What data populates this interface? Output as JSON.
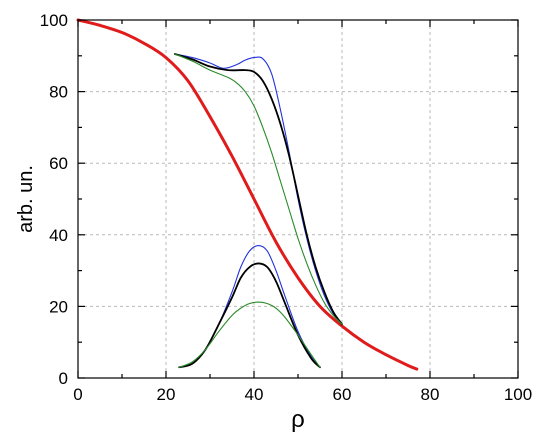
{
  "chart_data": {
    "type": "line",
    "title": "",
    "xlabel": "ρ",
    "ylabel": "arb. un.",
    "xlim": [
      0,
      100
    ],
    "ylim": [
      0,
      100
    ],
    "xticks": [
      0,
      20,
      40,
      60,
      80,
      100
    ],
    "yticks": [
      0,
      20,
      40,
      60,
      80,
      100
    ],
    "grid": true,
    "series": [
      {
        "color": "#e01b1b",
        "x": [
          0,
          5,
          10,
          15,
          20,
          25,
          30,
          35,
          40,
          45,
          50,
          55,
          60,
          65,
          70,
          75,
          77
        ],
        "y": [
          100,
          98.5,
          96.5,
          93.5,
          89.5,
          83,
          73,
          62,
          50,
          38,
          28,
          20,
          14.5,
          10,
          6.5,
          3.5,
          2.5
        ]
      },
      {
        "color": "#2233dd",
        "x": [
          22,
          26,
          30,
          33,
          36,
          38,
          40,
          42,
          44,
          46,
          48,
          50,
          52,
          54,
          56,
          58,
          60
        ],
        "y": [
          90.5,
          89.5,
          88,
          86.5,
          87.5,
          88.8,
          89.5,
          89.2,
          85,
          75,
          63,
          50,
          39,
          30,
          23,
          18,
          15
        ]
      },
      {
        "color": "#000000",
        "x": [
          22,
          26,
          30,
          34,
          38,
          40,
          42,
          44,
          46,
          48,
          50,
          52,
          54,
          56,
          58,
          60
        ],
        "y": [
          90.5,
          89,
          87,
          86,
          86,
          85.5,
          83,
          78,
          71,
          62,
          51,
          40,
          31,
          24,
          18.5,
          15
        ]
      },
      {
        "color": "#2a8a2a",
        "x": [
          22,
          26,
          30,
          34,
          36,
          38,
          40,
          42,
          44,
          46,
          48,
          50,
          52,
          54,
          56,
          58,
          60
        ],
        "y": [
          90.5,
          88.5,
          86,
          84,
          82.5,
          80,
          76,
          70,
          63,
          55,
          47,
          39,
          32,
          26,
          21,
          17.5,
          15
        ]
      },
      {
        "color": "#2233dd",
        "x": [
          23,
          26,
          29,
          32,
          35,
          37,
          39,
          41,
          43,
          45,
          47,
          50,
          53,
          55
        ],
        "y": [
          3,
          4,
          8,
          15,
          24,
          31,
          35.5,
          37,
          35.5,
          30,
          23,
          13,
          6,
          3
        ]
      },
      {
        "color": "#000000",
        "x": [
          23,
          26,
          29,
          32,
          35,
          37,
          39,
          41,
          43,
          45,
          47,
          50,
          53,
          55
        ],
        "y": [
          3,
          4,
          8,
          15,
          22.5,
          28,
          31,
          32,
          31,
          27,
          21,
          12,
          5.5,
          3
        ]
      },
      {
        "color": "#2a8a2a",
        "x": [
          23,
          26,
          29,
          32,
          35,
          37,
          39,
          41,
          43,
          45,
          47,
          50,
          53,
          55
        ],
        "y": [
          3,
          4.5,
          8,
          13,
          17.5,
          19.5,
          20.8,
          21.2,
          20.8,
          19.5,
          17,
          12,
          6.5,
          3
        ]
      }
    ]
  }
}
